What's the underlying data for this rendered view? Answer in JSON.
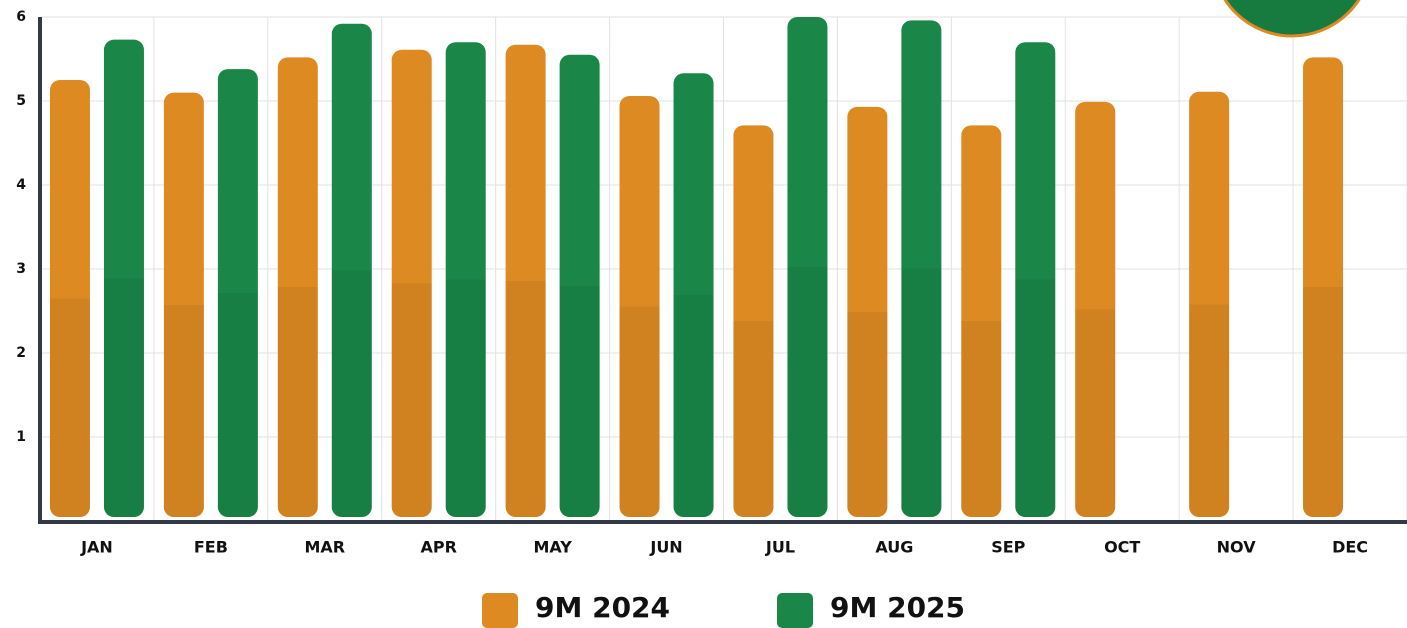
{
  "chart_data": {
    "type": "bar",
    "categories": [
      "JAN",
      "FEB",
      "MAR",
      "APR",
      "MAY",
      "JUN",
      "JUL",
      "AUG",
      "SEP",
      "OCT",
      "NOV",
      "DEC"
    ],
    "series": [
      {
        "name": "9M 2024",
        "color": "#dc8a21",
        "values": [
          5.25,
          5.1,
          5.52,
          5.61,
          5.67,
          5.06,
          4.71,
          4.93,
          4.71,
          4.99,
          5.11,
          5.52
        ]
      },
      {
        "name": "9M 2025",
        "color": "#1a8748",
        "values": [
          5.73,
          5.38,
          5.92,
          5.7,
          5.55,
          5.33,
          6.0,
          5.96,
          5.7,
          null,
          null,
          null
        ]
      }
    ],
    "ylim": [
      0,
      6
    ],
    "yticks": [
      1,
      2,
      3,
      4,
      5,
      6
    ],
    "grid": true
  }
}
